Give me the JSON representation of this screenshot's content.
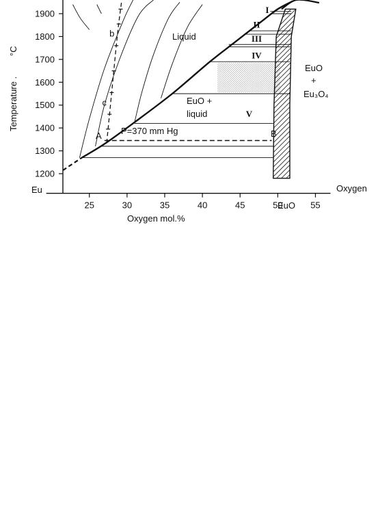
{
  "chart_data": {
    "type": "phase-diagram",
    "title": "",
    "xlabel": "Oxygen mol.%",
    "ylabel": "Temperature .",
    "yunit": "°C",
    "xlim": [
      20,
      57
    ],
    "ylim": [
      1150,
      1960
    ],
    "x_ticks": [
      25,
      30,
      35,
      40,
      45,
      50,
      55
    ],
    "y_ticks": [
      1200,
      1300,
      1400,
      1500,
      1600,
      1700,
      1800,
      1900
    ],
    "x_end_labels": {
      "left": "Eu",
      "right": "Oxygen"
    },
    "compound_label": "EuO",
    "liquidus": [
      [
        21.5,
        1215
      ],
      [
        24,
        1270
      ],
      [
        27,
        1330
      ],
      [
        31,
        1425
      ],
      [
        36,
        1550
      ],
      [
        41,
        1690
      ],
      [
        44.5,
        1780
      ],
      [
        48,
        1870
      ],
      [
        50,
        1920
      ],
      [
        52,
        1955
      ]
    ],
    "liquidus_dashed_upto_x": 23.5,
    "miscibility_dome": [
      [
        50.5,
        1920
      ],
      [
        52.5,
        1960
      ],
      [
        55.5,
        1948
      ]
    ],
    "eu_o_phase_band": {
      "left_edge": [
        [
          49.4,
          1180
        ],
        [
          49.5,
          1500
        ],
        [
          49.8,
          1800
        ],
        [
          51,
          1920
        ]
      ],
      "right_edge": [
        [
          51.6,
          1180
        ],
        [
          51.6,
          1500
        ],
        [
          51.8,
          1800
        ],
        [
          52.4,
          1920
        ]
      ]
    },
    "isotherms": [
      {
        "temp": 1270,
        "x_from": 24.0,
        "x_to": 49.4
      },
      {
        "temp": 1320,
        "x_from": 26.6,
        "x_to": 49.4
      },
      {
        "temp": 1420,
        "x_from": 31.0,
        "x_to": 49.4
      },
      {
        "temp": 1550,
        "x_from": 36.0,
        "x_to": 51.6
      },
      {
        "temp": 1690,
        "x_from": 41.0,
        "x_to": 51.6
      },
      {
        "temp": 1755,
        "x_from": 43.5,
        "x_to": 51.7
      },
      {
        "temp": 1765,
        "x_from": 43.5,
        "x_to": 51.7
      },
      {
        "temp": 1810,
        "x_from": 45.8,
        "x_to": 51.8
      },
      {
        "temp": 1825,
        "x_from": 46.2,
        "x_to": 51.8
      },
      {
        "temp": 1900,
        "x_from": 49.0,
        "x_to": 51.8
      },
      {
        "temp": 1910,
        "x_from": 49.0,
        "x_to": 51.8
      }
    ],
    "shaded_region": {
      "x_from": 42.0,
      "x_to": 50.3,
      "t_from": 1555,
      "t_to": 1685
    },
    "isobar": {
      "label": "P=370 mm Hg",
      "temp": 1345,
      "x_from": 27.0,
      "x_to": 49.2,
      "dashed": true,
      "end_labels": {
        "left": "A",
        "right": "B"
      }
    },
    "composition_curves": [
      {
        "points": [
          [
            23.7,
            1270
          ],
          [
            25.0,
            1440
          ],
          [
            27.0,
            1660
          ],
          [
            29.5,
            1870
          ],
          [
            30.8,
            1960
          ]
        ]
      },
      {
        "points": [
          [
            25.8,
            1320
          ],
          [
            27.0,
            1500
          ],
          [
            29.0,
            1700
          ],
          [
            31.5,
            1890
          ],
          [
            33.5,
            1960
          ]
        ]
      },
      {
        "points": [
          [
            31.0,
            1425
          ],
          [
            32.0,
            1560
          ],
          [
            33.5,
            1720
          ],
          [
            35.5,
            1880
          ],
          [
            37.0,
            1950
          ]
        ]
      },
      {
        "points": [
          [
            34.5,
            1530
          ],
          [
            36.0,
            1680
          ],
          [
            38.0,
            1840
          ],
          [
            40.0,
            1940
          ]
        ]
      },
      {
        "points": [
          [
            22.8,
            1940
          ],
          [
            23.8,
            1880
          ],
          [
            25.0,
            1830
          ]
        ]
      },
      {
        "points": [
          [
            26.0,
            1940
          ],
          [
            26.6,
            1900
          ]
        ]
      }
    ],
    "dashed_vertical_curve": {
      "points": [
        [
          27.3,
          1335
        ],
        [
          27.8,
          1500
        ],
        [
          28.7,
          1800
        ],
        [
          29.3,
          1960
        ]
      ],
      "point_labels": [
        {
          "label": "b",
          "x": 28.0,
          "t": 1812
        },
        {
          "label": "c",
          "x": 27.0,
          "t": 1510
        }
      ],
      "tick_marks_t": [
        1395,
        1460,
        1555,
        1650,
        1760,
        1855,
        1920
      ]
    },
    "region_labels": {
      "liquid": "Liquid",
      "euo_liquid_line1": "EuO +",
      "euo_liquid_line2": "liquid",
      "euo_eu3o4_line1": "EuO",
      "euo_eu3o4_line2": "+",
      "euo_eu3o4_line3": "Eu₃O₄"
    },
    "roman_numerals": [
      {
        "label": "I",
        "x": 48.6,
        "t": 1915
      },
      {
        "label": "II",
        "x": 47.2,
        "t": 1850
      },
      {
        "label": "III",
        "x": 47.2,
        "t": 1790
      },
      {
        "label": "IV",
        "x": 47.2,
        "t": 1716
      },
      {
        "label": "V",
        "x": 46.2,
        "t": 1460
      }
    ]
  }
}
